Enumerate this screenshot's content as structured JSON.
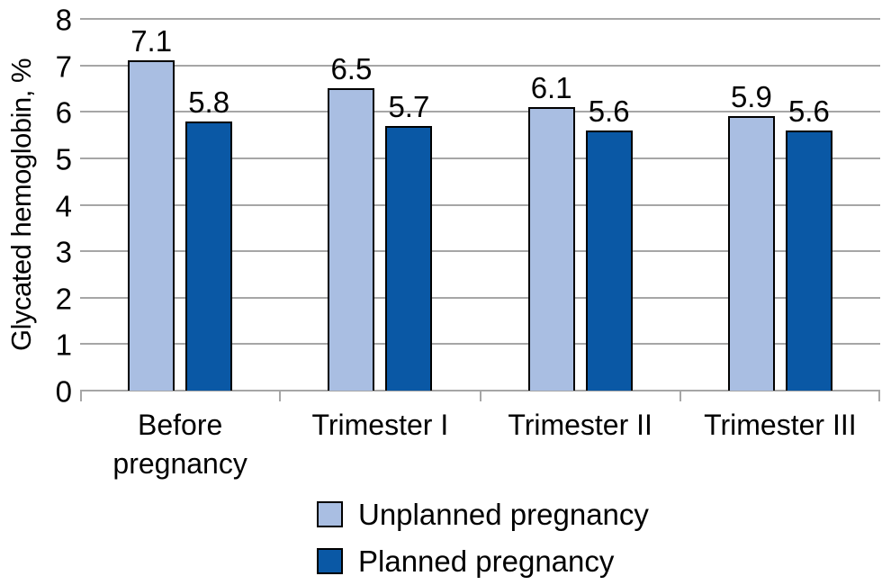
{
  "chart_data": {
    "type": "bar",
    "title": "",
    "xlabel": "",
    "ylabel": "Glycated hemoglobin, %",
    "ylim": [
      0,
      8
    ],
    "ytick_step": 1,
    "grid": true,
    "legend_position": "bottom",
    "categories": [
      "Before pregnancy",
      "Trimester I",
      "Trimester II",
      "Trimester III"
    ],
    "category_label_lines": [
      [
        "Before",
        "pregnancy"
      ],
      [
        "Trimester I"
      ],
      [
        "Trimester II"
      ],
      [
        "Trimester III"
      ]
    ],
    "series": [
      {
        "name": "Unplanned pregnancy",
        "color": "#a9bee2",
        "values": [
          7.1,
          6.5,
          6.1,
          5.9
        ]
      },
      {
        "name": "Planned pregnancy",
        "color": "#0a58a5",
        "values": [
          5.8,
          5.7,
          5.6,
          5.6
        ]
      }
    ],
    "value_label_decimals": 1,
    "colors": {
      "bar_border": "#000000",
      "gridline": "#a6a6a6",
      "axis": "#a6a6a6",
      "text": "#000000",
      "background": "#ffffff"
    }
  }
}
